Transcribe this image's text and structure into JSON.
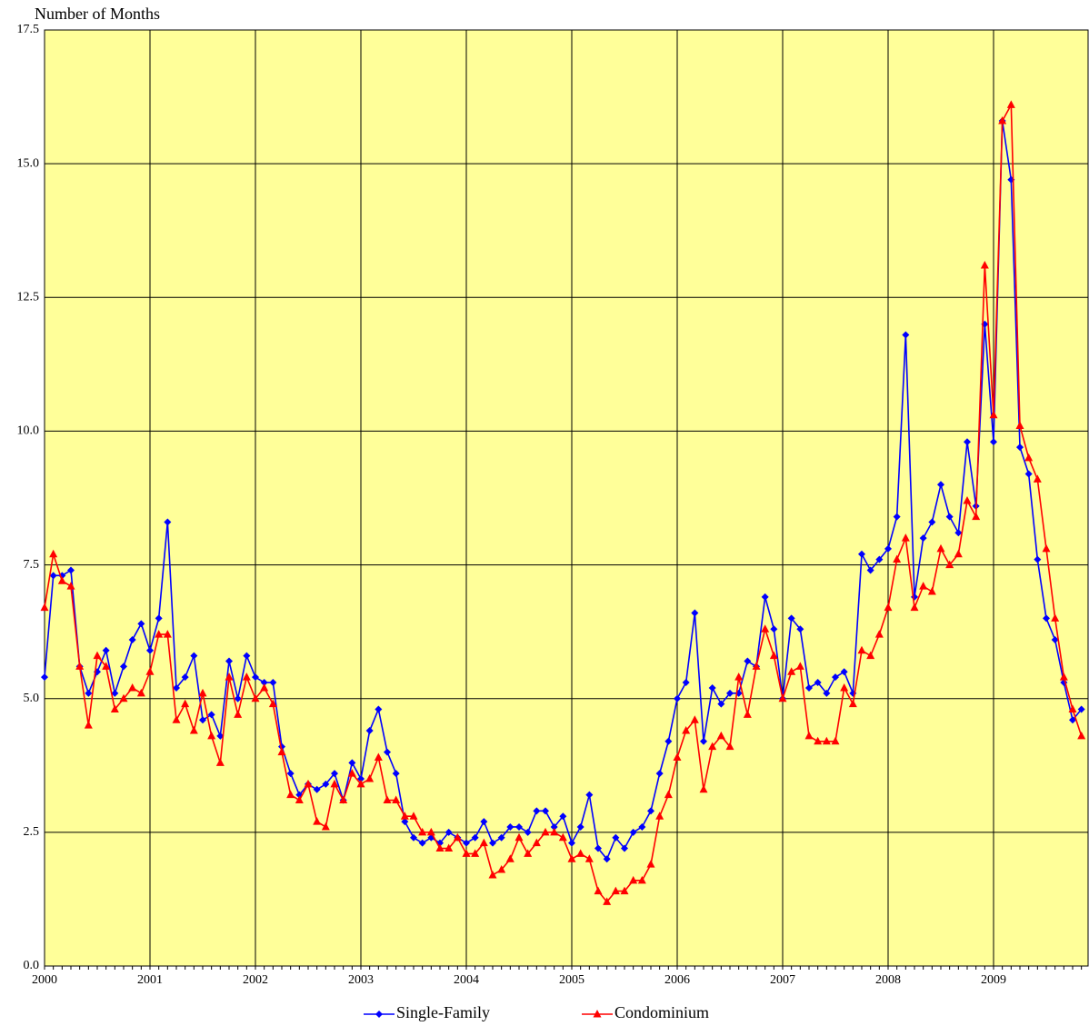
{
  "chart_data": {
    "type": "line",
    "y_axis_label": "Number of Months",
    "categories": [
      "2000",
      null,
      null,
      null,
      null,
      null,
      null,
      null,
      null,
      null,
      null,
      null,
      "2001",
      null,
      null,
      null,
      null,
      null,
      null,
      null,
      null,
      null,
      null,
      null,
      "2002",
      null,
      null,
      null,
      null,
      null,
      null,
      null,
      null,
      null,
      null,
      null,
      "2003",
      null,
      null,
      null,
      null,
      null,
      null,
      null,
      null,
      null,
      null,
      null,
      "2004",
      null,
      null,
      null,
      null,
      null,
      null,
      null,
      null,
      null,
      null,
      null,
      "2005",
      null,
      null,
      null,
      null,
      null,
      null,
      null,
      null,
      null,
      null,
      null,
      "2006",
      null,
      null,
      null,
      null,
      null,
      null,
      null,
      null,
      null,
      null,
      null,
      "2007",
      null,
      null,
      null,
      null,
      null,
      null,
      null,
      null,
      null,
      null,
      null,
      "2008",
      null,
      null,
      null,
      null,
      null,
      null,
      null,
      null,
      null,
      null,
      null,
      "2009",
      null,
      null,
      null,
      null,
      null,
      null,
      null,
      null,
      null,
      null
    ],
    "series": [
      {
        "name": "Single-Family",
        "color": "#0000ff",
        "marker": "diamond",
        "values": [
          5.4,
          7.3,
          7.3,
          7.4,
          5.6,
          5.1,
          5.5,
          5.9,
          5.1,
          5.6,
          6.1,
          6.4,
          5.9,
          6.5,
          8.3,
          5.2,
          5.4,
          5.8,
          4.6,
          4.7,
          4.3,
          5.7,
          5.0,
          5.8,
          5.4,
          5.3,
          5.3,
          4.1,
          3.6,
          3.2,
          3.4,
          3.3,
          3.4,
          3.6,
          3.1,
          3.8,
          3.5,
          4.4,
          4.8,
          4.0,
          3.6,
          2.7,
          2.4,
          2.3,
          2.4,
          2.3,
          2.5,
          2.4,
          2.3,
          2.4,
          2.7,
          2.3,
          2.4,
          2.6,
          2.6,
          2.5,
          2.9,
          2.9,
          2.6,
          2.8,
          2.3,
          2.6,
          3.2,
          2.2,
          2.0,
          2.4,
          2.2,
          2.5,
          2.6,
          2.9,
          3.6,
          4.2,
          5.0,
          5.3,
          6.6,
          4.2,
          5.2,
          4.9,
          5.1,
          5.1,
          5.7,
          5.6,
          6.9,
          6.3,
          5.0,
          6.5,
          6.3,
          5.2,
          5.3,
          5.1,
          5.4,
          5.5,
          5.1,
          7.7,
          7.4,
          7.6,
          7.8,
          8.4,
          11.8,
          6.9,
          8.0,
          8.3,
          9.0,
          8.4,
          8.1,
          9.8,
          8.6,
          12.0,
          9.8,
          15.8,
          14.7,
          9.7,
          9.2,
          7.6,
          6.5,
          6.1,
          5.3,
          4.6,
          4.8
        ]
      },
      {
        "name": "Condominium",
        "color": "#ff0000",
        "marker": "triangle",
        "values": [
          6.7,
          7.7,
          7.2,
          7.1,
          5.6,
          4.5,
          5.8,
          5.6,
          4.8,
          5.0,
          5.2,
          5.1,
          5.5,
          6.2,
          6.2,
          4.6,
          4.9,
          4.4,
          5.1,
          4.3,
          3.8,
          5.4,
          4.7,
          5.4,
          5.0,
          5.2,
          4.9,
          4.0,
          3.2,
          3.1,
          3.4,
          2.7,
          2.6,
          3.4,
          3.1,
          3.6,
          3.4,
          3.5,
          3.9,
          3.1,
          3.1,
          2.8,
          2.8,
          2.5,
          2.5,
          2.2,
          2.2,
          2.4,
          2.1,
          2.1,
          2.3,
          1.7,
          1.8,
          2.0,
          2.4,
          2.1,
          2.3,
          2.5,
          2.5,
          2.4,
          2.0,
          2.1,
          2.0,
          1.4,
          1.2,
          1.4,
          1.4,
          1.6,
          1.6,
          1.9,
          2.8,
          3.2,
          3.9,
          4.4,
          4.6,
          3.3,
          4.1,
          4.3,
          4.1,
          5.4,
          4.7,
          5.6,
          6.3,
          5.8,
          5.0,
          5.5,
          5.6,
          4.3,
          4.2,
          4.2,
          4.2,
          5.2,
          4.9,
          5.9,
          5.8,
          6.2,
          6.7,
          7.6,
          8.0,
          6.7,
          7.1,
          7.0,
          7.8,
          7.5,
          7.7,
          8.7,
          8.4,
          13.1,
          10.3,
          15.8,
          16.1,
          10.1,
          9.5,
          9.1,
          7.8,
          6.5,
          5.4,
          4.8,
          4.3
        ]
      }
    ],
    "ylim": [
      0,
      17.5
    ],
    "yticks": [
      {
        "value": 0,
        "label": "0.0"
      },
      {
        "value": 2.5,
        "label": "2.5"
      },
      {
        "value": 5,
        "label": "5.0"
      },
      {
        "value": 7.5,
        "label": "7.5"
      },
      {
        "value": 10,
        "label": "10.0"
      },
      {
        "value": 12.5,
        "label": "12.5"
      },
      {
        "value": 15,
        "label": "15.0"
      },
      {
        "value": 17.5,
        "label": "17.5"
      }
    ],
    "grid": true,
    "background": "#ffff99",
    "legend": "bottom"
  }
}
